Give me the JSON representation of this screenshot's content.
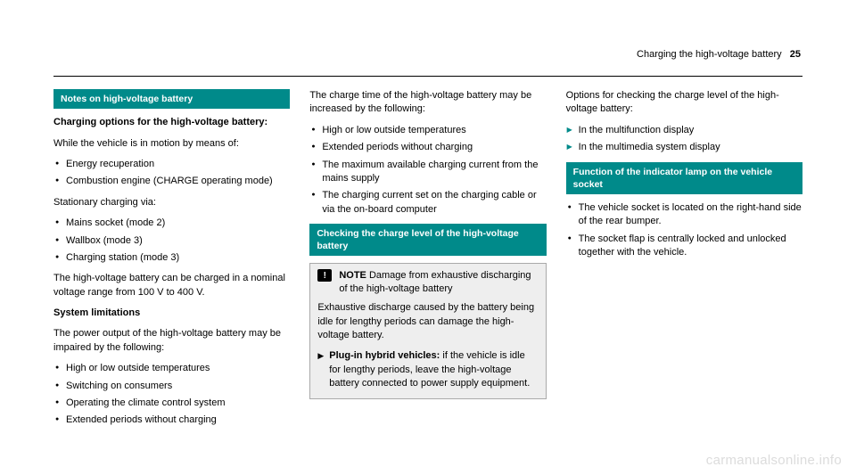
{
  "header": {
    "title": "Charging the high-voltage battery",
    "page": "25"
  },
  "col1": {
    "h1": "Notes on high-voltage battery",
    "p1": "Charging options for the high-voltage battery:",
    "p2": "While the vehicle is in motion by means of:",
    "l1a": "Energy recuperation",
    "l1b": "Combustion engine (CHARGE operating mode)",
    "p3": "Stationary charging via:",
    "l2a": "Mains socket (mode 2)",
    "l2b": "Wallbox (mode 3)",
    "l2c": "Charging station (mode 3)",
    "p4": "The high-voltage battery can be charged in a nominal voltage range from 100 V to 400 V.",
    "p5": "System limitations",
    "p6": "The power output of the high-voltage battery may be impaired by the following:",
    "l3a": "High or low outside temperatures",
    "l3b": "Switching on consumers",
    "l3c": "Operating the climate control system",
    "l3d": "Extended periods without charging"
  },
  "col2": {
    "p1": "The charge time of the high-voltage battery may be increased by the following:",
    "l1a": "High or low outside temperatures",
    "l1b": "Extended periods without charging",
    "l1c": "The maximum available charging current from the mains supply",
    "l1d": "The charging current set on the charging cable or via the on-board computer",
    "h2": "Checking the charge level of the high-voltage battery",
    "noteLabel": "NOTE",
    "noteTitle": " Damage from exhaustive discharging of the high-voltage battery",
    "noteBody": "Exhaustive discharge caused by the battery being idle for lengthy periods can damage the high-voltage battery.",
    "noteInstrBold": "Plug-in hybrid vehicles:",
    "noteInstrRest": " if the vehicle is idle for lengthy periods, leave the high-voltage battery connected to power supply equipment."
  },
  "col3": {
    "p1": "Options for checking the charge level of the high-voltage battery:",
    "a1": "In the multifunction display",
    "a2": "In the multimedia system display",
    "h3": "Function of the indicator lamp on the vehicle socket",
    "l1a": "The vehicle socket is located on the right-hand side of the rear bumper.",
    "l1b": "The socket flap is centrally locked and unlocked together with the vehicle."
  },
  "watermark": "carmanualsonline.info"
}
